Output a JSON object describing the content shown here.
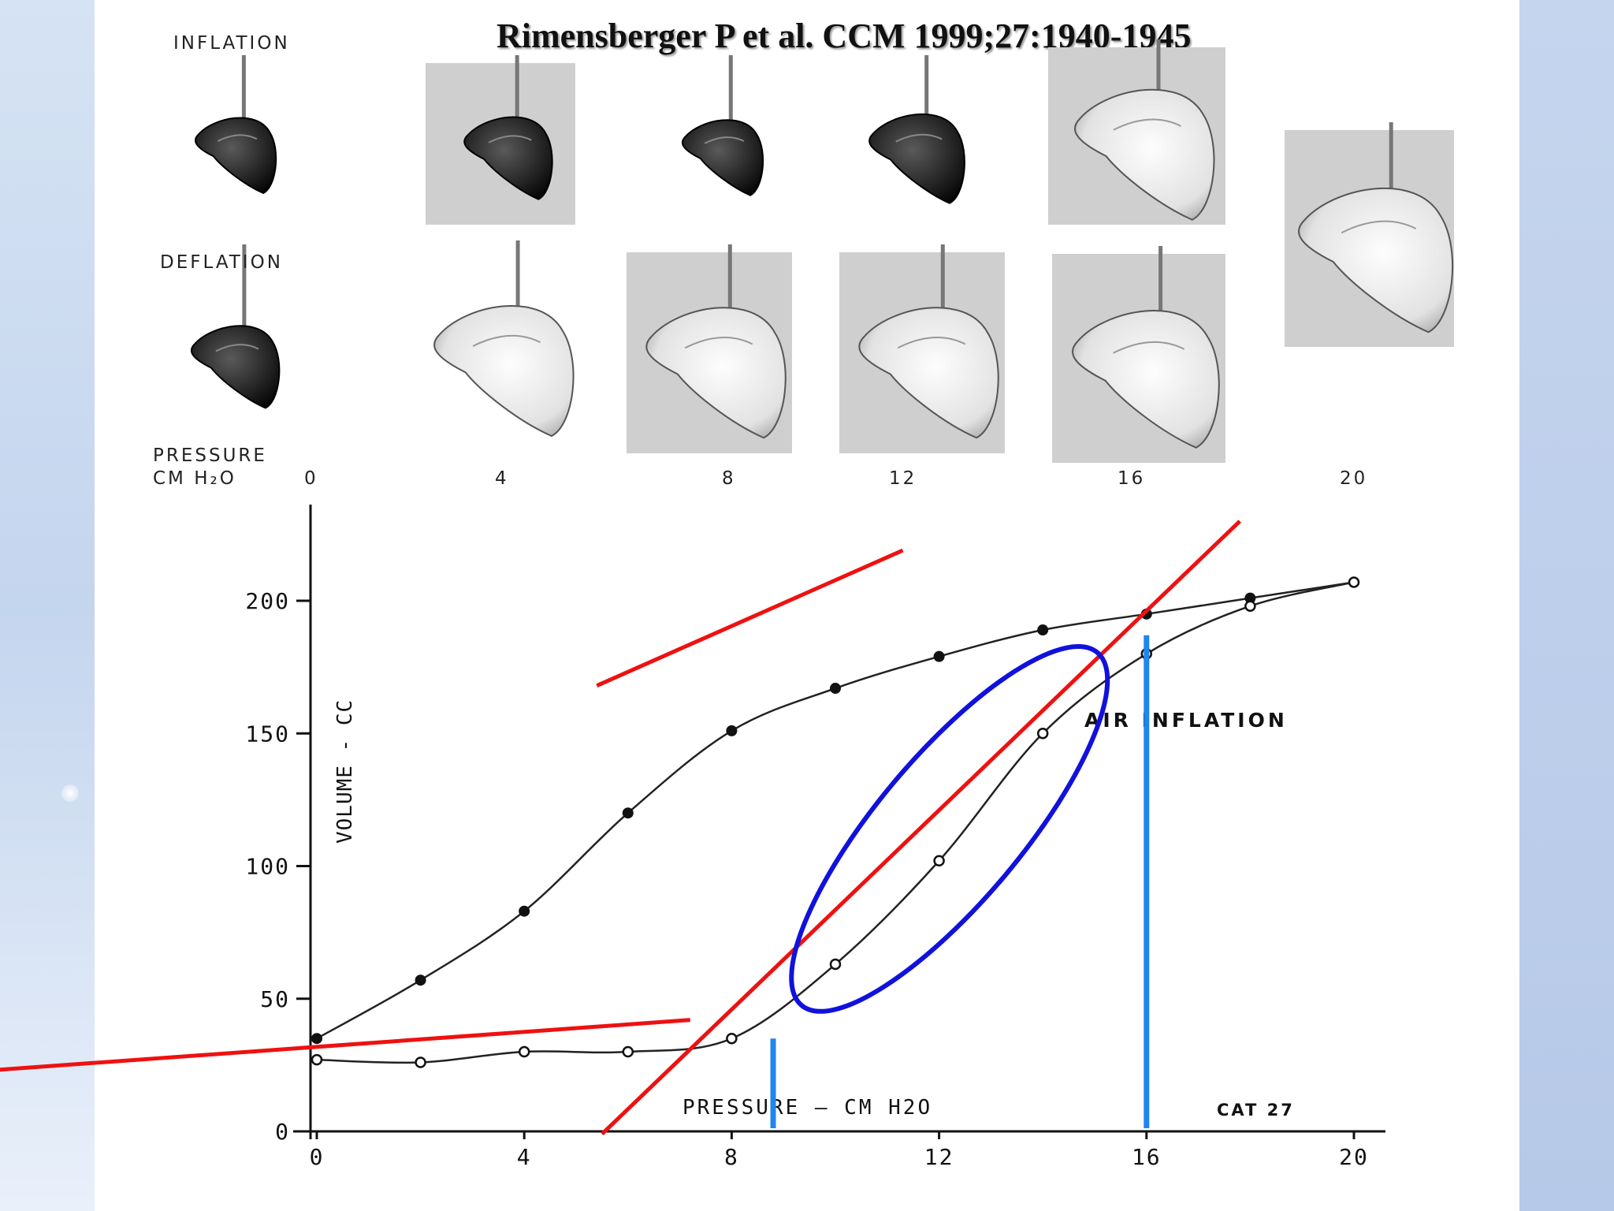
{
  "citation": "Rimensberger P et al. CCM 1999;27:1940-1945",
  "photos": {
    "row_labels": [
      "INFLATION",
      "DEFLATION"
    ],
    "pressure_label": "PRESSURE",
    "unit_label": "CM H₂O",
    "pressures": [
      "0",
      "4",
      "8",
      "12",
      "16",
      "20"
    ]
  },
  "colors": {
    "fit_lines": "#ee1111",
    "ellipse": "#1111dd",
    "inflection_markers": "#1f86ee",
    "curve": "#222222"
  },
  "chart_data": {
    "type": "line",
    "title": "",
    "xlabel": "PRESSURE — CM H2O",
    "ylabel": "VOLUME - CC",
    "xlim": [
      0,
      20
    ],
    "ylim": [
      0,
      200
    ],
    "xticks": [
      "0",
      "4",
      "8",
      "12",
      "16",
      "20"
    ],
    "yticks": [
      "0",
      "50",
      "100",
      "150",
      "200"
    ],
    "annotations": [
      "AIR INFLATION",
      "CAT 27"
    ],
    "series": [
      {
        "name": "",
        "marker": "filled",
        "x": [
          0,
          2,
          4,
          6,
          8,
          10,
          12,
          14,
          16,
          18,
          20
        ],
        "y": [
          35,
          57,
          83,
          120,
          151,
          167,
          179,
          189,
          195,
          201,
          207
        ]
      },
      {
        "name": "AIR INFLATION",
        "marker": "open",
        "x": [
          0,
          2,
          4,
          6,
          8,
          10,
          12,
          14,
          16,
          18,
          20
        ],
        "y": [
          27,
          26,
          30,
          30,
          35,
          63,
          102,
          150,
          180,
          198,
          207
        ]
      }
    ],
    "fit_lines": [
      {
        "x": [
          -7,
          7.2
        ],
        "y": [
          22,
          42
        ]
      },
      {
        "x": [
          5.5,
          17.8
        ],
        "y": [
          -1,
          230
        ]
      },
      {
        "x": [
          5.4,
          11.3
        ],
        "y": [
          168,
          219
        ]
      }
    ],
    "inflection_pressures": [
      8.8,
      16
    ],
    "ellipse": {
      "center_x": 12.2,
      "center_y": 114,
      "angle_deg": 50
    }
  }
}
